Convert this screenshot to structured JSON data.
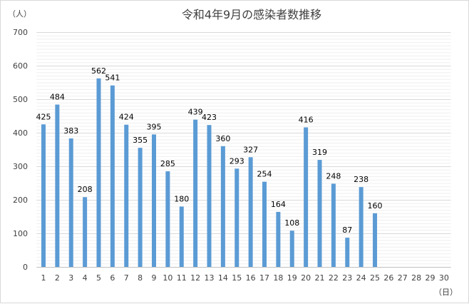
{
  "chart_data": {
    "type": "bar",
    "title": "令和4年9月の感染者数推移",
    "ylabel": "（人）",
    "xlabel": "（日）",
    "ylim": [
      0,
      700
    ],
    "ytick_step": 100,
    "minor_grid_step": 10,
    "grid": true,
    "legend": "none",
    "bar_color": "#5b9bd5",
    "categories": [
      "1",
      "2",
      "3",
      "4",
      "5",
      "6",
      "7",
      "8",
      "9",
      "10",
      "11",
      "12",
      "13",
      "14",
      "15",
      "16",
      "17",
      "18",
      "19",
      "20",
      "21",
      "22",
      "23",
      "24",
      "25",
      "26",
      "27",
      "28",
      "29",
      "30"
    ],
    "values": [
      425,
      484,
      383,
      208,
      562,
      541,
      424,
      355,
      395,
      285,
      180,
      439,
      423,
      360,
      293,
      327,
      254,
      164,
      108,
      416,
      319,
      248,
      87,
      238,
      160,
      null,
      null,
      null,
      null,
      null
    ]
  }
}
